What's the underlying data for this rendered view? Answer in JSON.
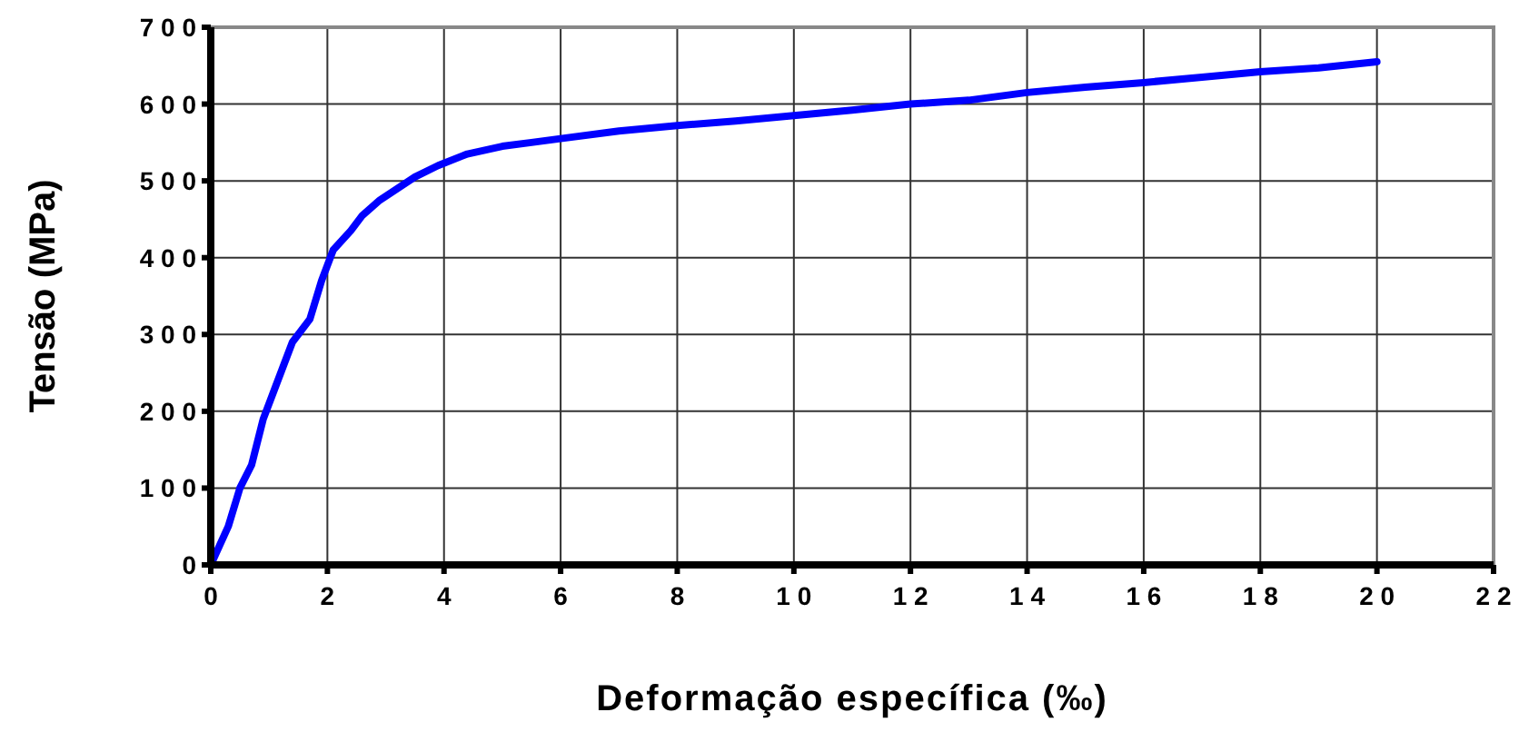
{
  "chart_data": {
    "type": "line",
    "xlabel": "Deformação específica (‰)",
    "ylabel": "Tensão (MPa)",
    "x": [
      0,
      0.3,
      0.5,
      0.7,
      0.9,
      1.1,
      1.4,
      1.7,
      1.9,
      2.1,
      2.4,
      2.6,
      2.9,
      3.2,
      3.5,
      3.9,
      4.4,
      5,
      5.5,
      6,
      7,
      8,
      9,
      10,
      11,
      12,
      13,
      14,
      15,
      16,
      17,
      18,
      19,
      20
    ],
    "series": [
      {
        "color": "#0000ff",
        "values": [
          0,
          50,
          100,
          130,
          190,
          230,
          290,
          320,
          370,
          410,
          435,
          455,
          475,
          490,
          505,
          520,
          535,
          545,
          550,
          555,
          565,
          572,
          578,
          585,
          592,
          600,
          605,
          615,
          622,
          628,
          635,
          642,
          647,
          655
        ]
      }
    ],
    "xlim": [
      0,
      22
    ],
    "xticks": [
      0,
      2,
      4,
      6,
      8,
      10,
      12,
      14,
      16,
      18,
      20,
      22
    ],
    "ylim": [
      0,
      700
    ],
    "yticks": [
      0,
      100,
      200,
      300,
      400,
      500,
      600,
      700
    ],
    "grid": true,
    "marker": "none",
    "line_style": "solid"
  }
}
